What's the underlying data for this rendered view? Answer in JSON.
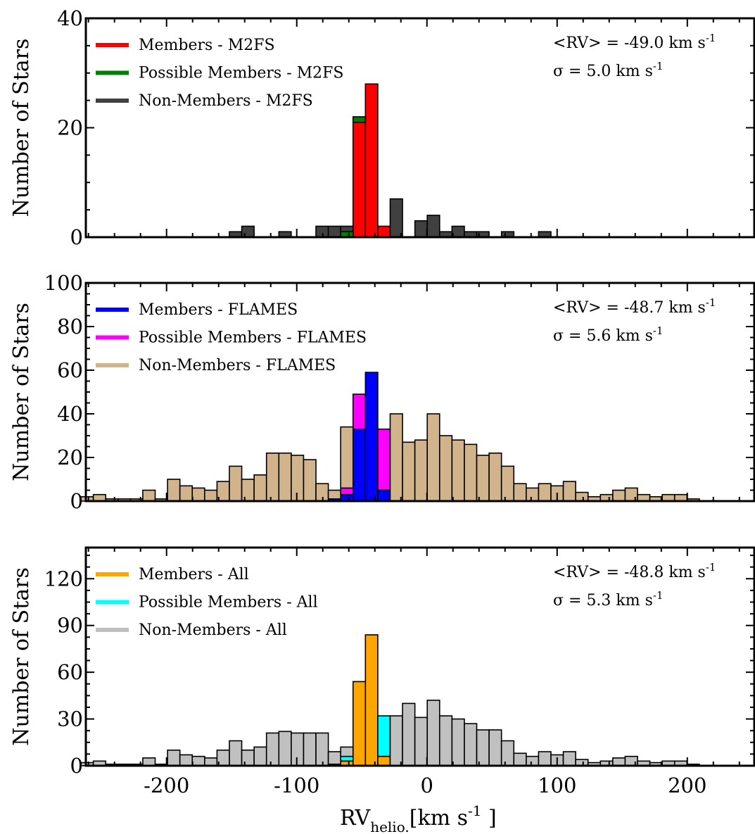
{
  "x_axis": {
    "label_main": "RV",
    "label_sub": "helio.",
    "label_unit_pre": "[km s",
    "label_unit_sup": "-1",
    "label_unit_post": " ]",
    "range": [
      -262,
      252
    ],
    "ticks": [
      -200,
      -100,
      0,
      100,
      200
    ],
    "tick_labels": [
      "-200",
      "-100",
      "0",
      "100",
      "200"
    ]
  },
  "chart_data": [
    {
      "type": "bar",
      "stacked": true,
      "bin_width": 9.5,
      "ylabel": "Number of Stars",
      "ylim": [
        0,
        40
      ],
      "yticks": [
        0,
        20,
        40
      ],
      "ytick_labels": [
        "0",
        "20",
        "40"
      ],
      "stat_mean_text": "<RV> = -49.0 km s",
      "stat_sigma_text": "σ = 5.0 km s",
      "stat_unit_sup": "-1",
      "legend_position": "top-left",
      "series": [
        {
          "name": "Members - M2FS",
          "color": "#ff0000",
          "x": [
            -52,
            -42.5,
            -33
          ],
          "values": [
            21,
            28,
            2
          ]
        },
        {
          "name": "Possible Members - M2FS",
          "color": "#008000",
          "x": [
            -61.5,
            -52
          ],
          "values": [
            1,
            1
          ]
        },
        {
          "name": "Non-Members - M2FS",
          "color": "#404040",
          "x": [
            -147,
            -137.5,
            -109,
            -80.5,
            -71,
            -61.5,
            -23.5,
            -4.5,
            5,
            14.5,
            24,
            33.5,
            43,
            62,
            90.5
          ],
          "values": [
            1,
            2,
            1,
            2,
            2,
            1,
            7,
            3,
            4,
            1,
            2,
            1,
            1,
            1,
            1
          ]
        }
      ]
    },
    {
      "type": "bar",
      "stacked": true,
      "bin_width": 9.5,
      "ylabel": "Number of Stars",
      "ylim": [
        0,
        100
      ],
      "yticks": [
        0,
        20,
        40,
        60,
        80,
        100
      ],
      "ytick_labels": [
        "0",
        "20",
        "40",
        "60",
        "80",
        "100"
      ],
      "stat_mean_text": "<RV> = -48.7 km s",
      "stat_sigma_text": "σ = 5.6 km s",
      "stat_unit_sup": "-1",
      "legend_position": "top-left",
      "series": [
        {
          "name": "Members - FLAMES",
          "color": "#0000ff",
          "x": [
            -71,
            -61.5,
            -52,
            -42.5,
            -33
          ],
          "values": [
            1,
            3,
            33,
            59,
            5
          ]
        },
        {
          "name": "Possible Members - FLAMES",
          "color": "#ff00ff",
          "x": [
            -61.5,
            -52,
            -42.5,
            -33
          ],
          "values": [
            3,
            16,
            0,
            28
          ]
        },
        {
          "name": "Non-Members - FLAMES",
          "color": "#d2b48c",
          "x": [
            -261,
            -251.5,
            -242,
            -232.5,
            -223,
            -213.5,
            -204,
            -194.5,
            -185,
            -175.5,
            -166,
            -156.5,
            -147,
            -137.5,
            -128,
            -118.5,
            -109,
            -99.5,
            -90,
            -80.5,
            -71,
            -61.5,
            -23.5,
            -14,
            -4.5,
            5,
            14.5,
            24,
            33.5,
            43,
            52.5,
            62,
            71.5,
            81,
            90.5,
            100,
            109.5,
            119,
            128.5,
            138,
            147.5,
            157,
            166.5,
            176,
            185.5,
            195,
            204.5,
            214,
            223.5
          ],
          "values": [
            2,
            3,
            1,
            1,
            1,
            5,
            1,
            10,
            7,
            6,
            5,
            9,
            16,
            10,
            12,
            22,
            22,
            21,
            19,
            8,
            4,
            28,
            40,
            27,
            28,
            40,
            30,
            28,
            26,
            21,
            22,
            16,
            8,
            6,
            8,
            7,
            9,
            4,
            2,
            3,
            5,
            6,
            3,
            2,
            3,
            3,
            1,
            0,
            0
          ]
        }
      ]
    },
    {
      "type": "bar",
      "stacked": true,
      "bin_width": 9.5,
      "ylabel": "Number of Stars",
      "ylim": [
        0,
        140
      ],
      "yticks": [
        0,
        30,
        60,
        90,
        120
      ],
      "ytick_labels": [
        "0",
        "30",
        "60",
        "90",
        "120"
      ],
      "stat_mean_text": "<RV> = -48.8 km s",
      "stat_sigma_text": "σ = 5.3 km s",
      "stat_unit_sup": "-1",
      "legend_position": "top-left",
      "series": [
        {
          "name": "Members - All",
          "color": "#ffa500",
          "x": [
            -71,
            -61.5,
            -52,
            -42.5,
            -33
          ],
          "values": [
            1,
            3,
            54,
            84,
            6
          ]
        },
        {
          "name": "Possible Members - All",
          "color": "#00ffff",
          "x": [
            -61.5,
            -52,
            -42.5,
            -33
          ],
          "values": [
            3,
            0,
            0,
            26
          ]
        },
        {
          "name": "Non-Members - All",
          "color": "#c0c0c0",
          "x": [
            -261,
            -251.5,
            -242,
            -232.5,
            -223,
            -213.5,
            -204,
            -194.5,
            -185,
            -175.5,
            -166,
            -156.5,
            -147,
            -137.5,
            -128,
            -118.5,
            -109,
            -99.5,
            -90,
            -80.5,
            -71,
            -61.5,
            -23.5,
            -14,
            -4.5,
            5,
            14.5,
            24,
            33.5,
            43,
            52.5,
            62,
            71.5,
            81,
            90.5,
            100,
            109.5,
            119,
            128.5,
            138,
            147.5,
            157,
            166.5,
            176,
            185.5,
            195,
            204.5,
            214
          ],
          "values": [
            2,
            3,
            1,
            1,
            1,
            5,
            1,
            10,
            7,
            6,
            5,
            10,
            16,
            10,
            12,
            21,
            22,
            21,
            21,
            21,
            8,
            6,
            32,
            40,
            31,
            42,
            32,
            30,
            27,
            23,
            23,
            16,
            8,
            6,
            9,
            7,
            9,
            4,
            2,
            3,
            5,
            6,
            3,
            2,
            3,
            3,
            1,
            0
          ]
        }
      ]
    }
  ]
}
